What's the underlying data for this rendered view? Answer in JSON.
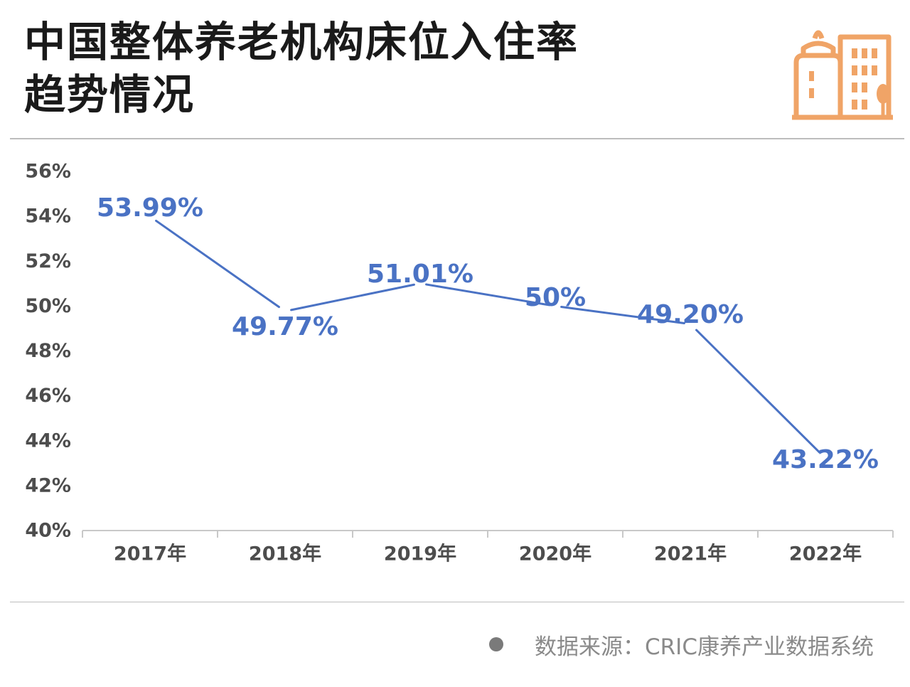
{
  "header": {
    "title_line1": "中国整体养老机构床位入住率",
    "title_line2": "趋势情况",
    "logo_icon": "city-buildings-icon"
  },
  "colors": {
    "accent": "#4a72c4",
    "logo": "#f0a467",
    "axis_text": "#4d4d4d",
    "rule": "#bdbdbd"
  },
  "chart_data": {
    "type": "line",
    "title": "中国整体养老机构床位入住率趋势情况",
    "categories": [
      "2017年",
      "2018年",
      "2019年",
      "2020年",
      "2021年",
      "2022年"
    ],
    "series": [
      {
        "name": "床位入住率",
        "values": [
          53.99,
          49.77,
          51.01,
          50,
          49.2,
          43.22
        ],
        "labels": [
          "53.99%",
          "49.77%",
          "51.01%",
          "50%",
          "49.20%",
          "43.22%"
        ]
      }
    ],
    "ylim": [
      40,
      56
    ],
    "yticks": [
      40,
      42,
      44,
      46,
      48,
      50,
      52,
      54,
      56
    ],
    "ytick_labels": [
      "40%",
      "42%",
      "44%",
      "46%",
      "48%",
      "50%",
      "52%",
      "54%",
      "56%"
    ],
    "xlabel": "",
    "ylabel": "",
    "grid": false,
    "legend": "none"
  },
  "footer": {
    "source_text": "数据来源：CRIC康养产业数据系统"
  }
}
